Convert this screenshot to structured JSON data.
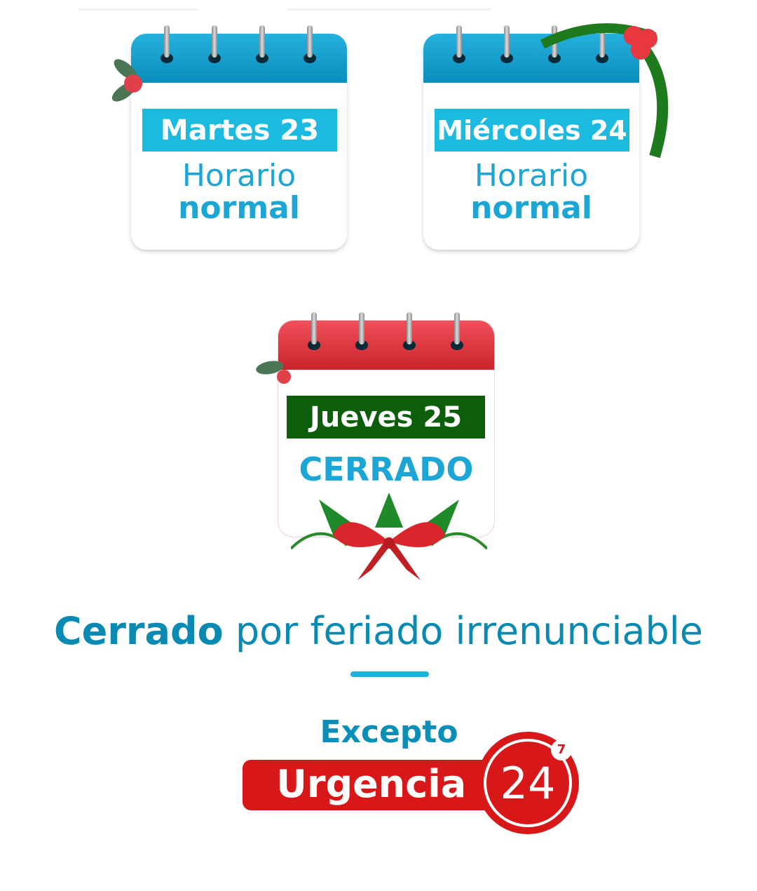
{
  "calendars": [
    {
      "day": "Martes 23",
      "line1": "Horario",
      "line2": "normal"
    },
    {
      "day": "Miércoles 24",
      "line1": "Horario",
      "line2": "normal"
    },
    {
      "day": "Jueves 25",
      "status": "CERRADO"
    }
  ],
  "message": {
    "bold": "Cerrado",
    "rest": " por feriado irrenunciable"
  },
  "exception": {
    "label": "Excepto",
    "brand": "Urgencia",
    "number": "24",
    "superscript": "7"
  },
  "colors": {
    "blue": "#1cb9e0",
    "text_blue": "#0a8ab3",
    "red": "#d81818",
    "green": "#0c5e0a"
  }
}
